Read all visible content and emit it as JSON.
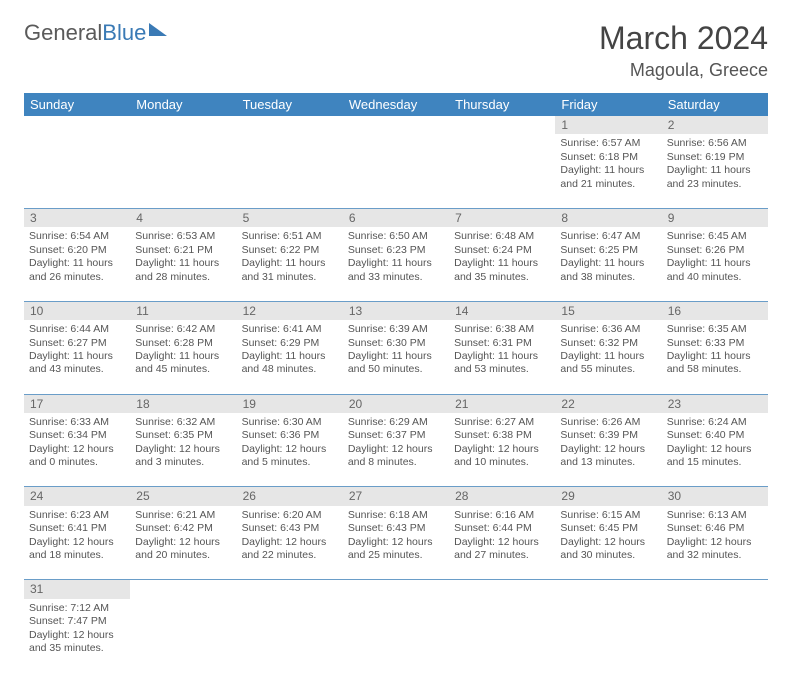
{
  "brand": {
    "part1": "General",
    "part2": "Blue"
  },
  "title": "March 2024",
  "location": "Magoula, Greece",
  "columns": [
    "Sunday",
    "Monday",
    "Tuesday",
    "Wednesday",
    "Thursday",
    "Friday",
    "Saturday"
  ],
  "colors": {
    "header_bg": "#3f84bf",
    "header_text": "#ffffff",
    "daynum_bg": "#e6e6e6",
    "cell_border": "#6a9dc8",
    "text": "#555555",
    "background": "#ffffff"
  },
  "fonts": {
    "title_size_pt": 24,
    "location_size_pt": 14,
    "header_size_pt": 10,
    "cell_size_pt": 8
  },
  "weeks": [
    [
      null,
      null,
      null,
      null,
      null,
      {
        "day": "1",
        "sunrise": "6:57 AM",
        "sunset": "6:18 PM",
        "daylight": "11 hours and 21 minutes."
      },
      {
        "day": "2",
        "sunrise": "6:56 AM",
        "sunset": "6:19 PM",
        "daylight": "11 hours and 23 minutes."
      }
    ],
    [
      {
        "day": "3",
        "sunrise": "6:54 AM",
        "sunset": "6:20 PM",
        "daylight": "11 hours and 26 minutes."
      },
      {
        "day": "4",
        "sunrise": "6:53 AM",
        "sunset": "6:21 PM",
        "daylight": "11 hours and 28 minutes."
      },
      {
        "day": "5",
        "sunrise": "6:51 AM",
        "sunset": "6:22 PM",
        "daylight": "11 hours and 31 minutes."
      },
      {
        "day": "6",
        "sunrise": "6:50 AM",
        "sunset": "6:23 PM",
        "daylight": "11 hours and 33 minutes."
      },
      {
        "day": "7",
        "sunrise": "6:48 AM",
        "sunset": "6:24 PM",
        "daylight": "11 hours and 35 minutes."
      },
      {
        "day": "8",
        "sunrise": "6:47 AM",
        "sunset": "6:25 PM",
        "daylight": "11 hours and 38 minutes."
      },
      {
        "day": "9",
        "sunrise": "6:45 AM",
        "sunset": "6:26 PM",
        "daylight": "11 hours and 40 minutes."
      }
    ],
    [
      {
        "day": "10",
        "sunrise": "6:44 AM",
        "sunset": "6:27 PM",
        "daylight": "11 hours and 43 minutes."
      },
      {
        "day": "11",
        "sunrise": "6:42 AM",
        "sunset": "6:28 PM",
        "daylight": "11 hours and 45 minutes."
      },
      {
        "day": "12",
        "sunrise": "6:41 AM",
        "sunset": "6:29 PM",
        "daylight": "11 hours and 48 minutes."
      },
      {
        "day": "13",
        "sunrise": "6:39 AM",
        "sunset": "6:30 PM",
        "daylight": "11 hours and 50 minutes."
      },
      {
        "day": "14",
        "sunrise": "6:38 AM",
        "sunset": "6:31 PM",
        "daylight": "11 hours and 53 minutes."
      },
      {
        "day": "15",
        "sunrise": "6:36 AM",
        "sunset": "6:32 PM",
        "daylight": "11 hours and 55 minutes."
      },
      {
        "day": "16",
        "sunrise": "6:35 AM",
        "sunset": "6:33 PM",
        "daylight": "11 hours and 58 minutes."
      }
    ],
    [
      {
        "day": "17",
        "sunrise": "6:33 AM",
        "sunset": "6:34 PM",
        "daylight": "12 hours and 0 minutes."
      },
      {
        "day": "18",
        "sunrise": "6:32 AM",
        "sunset": "6:35 PM",
        "daylight": "12 hours and 3 minutes."
      },
      {
        "day": "19",
        "sunrise": "6:30 AM",
        "sunset": "6:36 PM",
        "daylight": "12 hours and 5 minutes."
      },
      {
        "day": "20",
        "sunrise": "6:29 AM",
        "sunset": "6:37 PM",
        "daylight": "12 hours and 8 minutes."
      },
      {
        "day": "21",
        "sunrise": "6:27 AM",
        "sunset": "6:38 PM",
        "daylight": "12 hours and 10 minutes."
      },
      {
        "day": "22",
        "sunrise": "6:26 AM",
        "sunset": "6:39 PM",
        "daylight": "12 hours and 13 minutes."
      },
      {
        "day": "23",
        "sunrise": "6:24 AM",
        "sunset": "6:40 PM",
        "daylight": "12 hours and 15 minutes."
      }
    ],
    [
      {
        "day": "24",
        "sunrise": "6:23 AM",
        "sunset": "6:41 PM",
        "daylight": "12 hours and 18 minutes."
      },
      {
        "day": "25",
        "sunrise": "6:21 AM",
        "sunset": "6:42 PM",
        "daylight": "12 hours and 20 minutes."
      },
      {
        "day": "26",
        "sunrise": "6:20 AM",
        "sunset": "6:43 PM",
        "daylight": "12 hours and 22 minutes."
      },
      {
        "day": "27",
        "sunrise": "6:18 AM",
        "sunset": "6:43 PM",
        "daylight": "12 hours and 25 minutes."
      },
      {
        "day": "28",
        "sunrise": "6:16 AM",
        "sunset": "6:44 PM",
        "daylight": "12 hours and 27 minutes."
      },
      {
        "day": "29",
        "sunrise": "6:15 AM",
        "sunset": "6:45 PM",
        "daylight": "12 hours and 30 minutes."
      },
      {
        "day": "30",
        "sunrise": "6:13 AM",
        "sunset": "6:46 PM",
        "daylight": "12 hours and 32 minutes."
      }
    ],
    [
      {
        "day": "31",
        "sunrise": "7:12 AM",
        "sunset": "7:47 PM",
        "daylight": "12 hours and 35 minutes."
      },
      null,
      null,
      null,
      null,
      null,
      null
    ]
  ],
  "labels": {
    "sunrise": "Sunrise:",
    "sunset": "Sunset:",
    "daylight": "Daylight:"
  }
}
